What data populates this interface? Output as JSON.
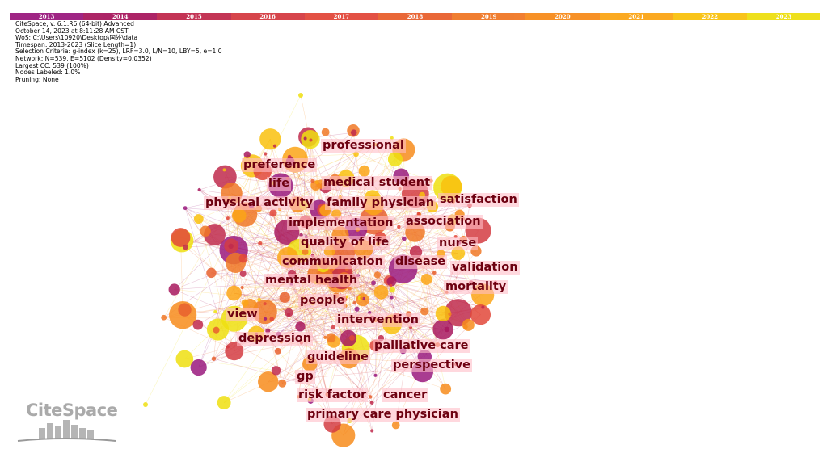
{
  "timeline": {
    "years": [
      "2013",
      "2014",
      "2015",
      "2016",
      "2017",
      "2018",
      "2019",
      "2020",
      "2021",
      "2022",
      "2023"
    ],
    "colors": [
      "#9a1a7e",
      "#a8195e",
      "#c02a4c",
      "#d43c42",
      "#e2483a",
      "#e8602e",
      "#f07826",
      "#f78c1c",
      "#fba516",
      "#f9c10e",
      "#eedf10"
    ]
  },
  "info": [
    "CiteSpace, v. 6.1.R6 (64-bit) Advanced",
    "October 14, 2023 at 8:11:28 AM CST",
    "WoS: C:\\Users\\10920\\Desktop\\国外\\data",
    "Timespan: 2013-2023 (Slice Length=1)",
    "Selection Criteria: g-index (k=25), LRF=3.0, L/N=10, LBY=5, e=1.0",
    "Network: N=539, E=5102 (Density=0.0352)",
    "Largest CC: 539 (100%)",
    "Nodes Labeled: 1.0%",
    "Pruning: None"
  ],
  "keywords": [
    "professional",
    "preference",
    "life",
    "medical student",
    "physical activity",
    "family physician",
    "satisfaction",
    "implementation",
    "association",
    "quality of life",
    "nurse",
    "communication",
    "disease",
    "validation",
    "mental health",
    "mortality",
    "people",
    "view",
    "intervention",
    "depression",
    "palliative care",
    "guideline",
    "perspective",
    "gp",
    "risk factor",
    "cancer",
    "primary care physician"
  ],
  "logo": {
    "text": "CiteSpace"
  }
}
